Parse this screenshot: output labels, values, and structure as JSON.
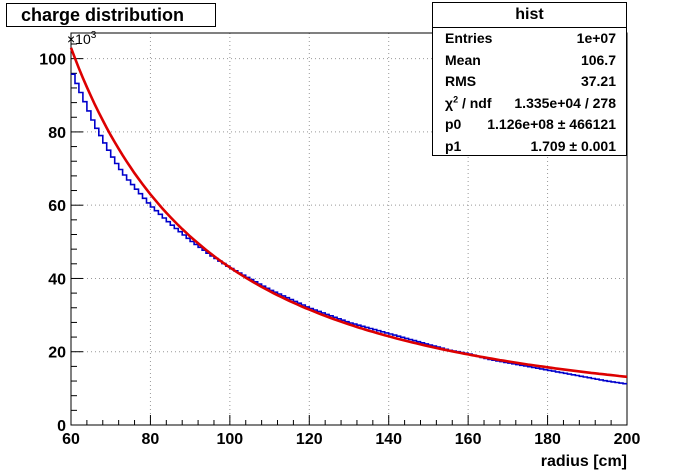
{
  "chart_data": {
    "type": "line",
    "title": "charge distribution",
    "xlabel": "radius [cm]",
    "ylabel": "",
    "y_exponent_label": "×10",
    "y_exponent_power": "3",
    "xlim": [
      60,
      200
    ],
    "ylim": [
      0,
      107
    ],
    "x_ticks": [
      60,
      80,
      100,
      120,
      140,
      160,
      180,
      200
    ],
    "y_ticks": [
      0,
      20,
      40,
      60,
      80,
      100
    ],
    "grid": true,
    "series": [
      {
        "color": "#0000cc",
        "style": "histogram",
        "x": [
          60,
          62,
          64,
          66,
          68,
          70,
          72,
          74,
          76,
          78,
          80,
          85,
          90,
          95,
          100,
          105,
          110,
          115,
          120,
          125,
          130,
          135,
          140,
          145,
          150,
          155,
          160,
          165,
          170,
          175,
          180,
          185,
          190,
          195,
          200
        ],
        "values": [
          97,
          92,
          87,
          82,
          78,
          74,
          70.5,
          67.5,
          65,
          62.5,
          60,
          55,
          50.5,
          46.5,
          43,
          40,
          37,
          34.5,
          32,
          30,
          28,
          26.5,
          25,
          23.5,
          22,
          20.5,
          19.5,
          18,
          17,
          16,
          15,
          14,
          13,
          12,
          11.2
        ]
      },
      {
        "color": "#dd0000",
        "style": "fit",
        "p0": 112600000,
        "p1": 1.709
      }
    ]
  },
  "stats_box": {
    "title": "hist",
    "rows": [
      {
        "label": "Entries",
        "value": "1e+07"
      },
      {
        "label": "Mean",
        "value": "106.7"
      },
      {
        "label": "RMS",
        "value": "37.21"
      },
      {
        "label": "χ",
        "label_sup": "2",
        "label_tail": " / ndf",
        "value": "1.335e+04 / 278"
      },
      {
        "label": "p0",
        "value": "1.126e+08 ± 466121"
      },
      {
        "label": "p1",
        "value": "1.709 ± 0.001"
      }
    ]
  }
}
